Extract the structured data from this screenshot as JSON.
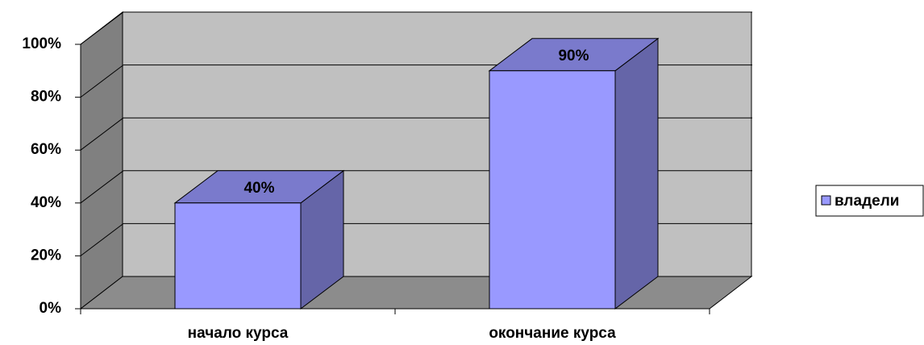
{
  "chart_data": {
    "type": "bar",
    "categories": [
      "начало курса",
      "окончание курса"
    ],
    "series": [
      {
        "name": "владели",
        "color": "#9999ff",
        "values": [
          40,
          90
        ],
        "value_labels": [
          "40%",
          "90%"
        ]
      }
    ],
    "ylim": [
      0,
      100
    ],
    "yticks": [
      {
        "value": 0,
        "label": "0%"
      },
      {
        "value": 20,
        "label": "20%"
      },
      {
        "value": 40,
        "label": "40%"
      },
      {
        "value": 60,
        "label": "60%"
      },
      {
        "value": 80,
        "label": "80%"
      },
      {
        "value": 100,
        "label": "100%"
      }
    ],
    "grid": true,
    "legend": "right"
  }
}
